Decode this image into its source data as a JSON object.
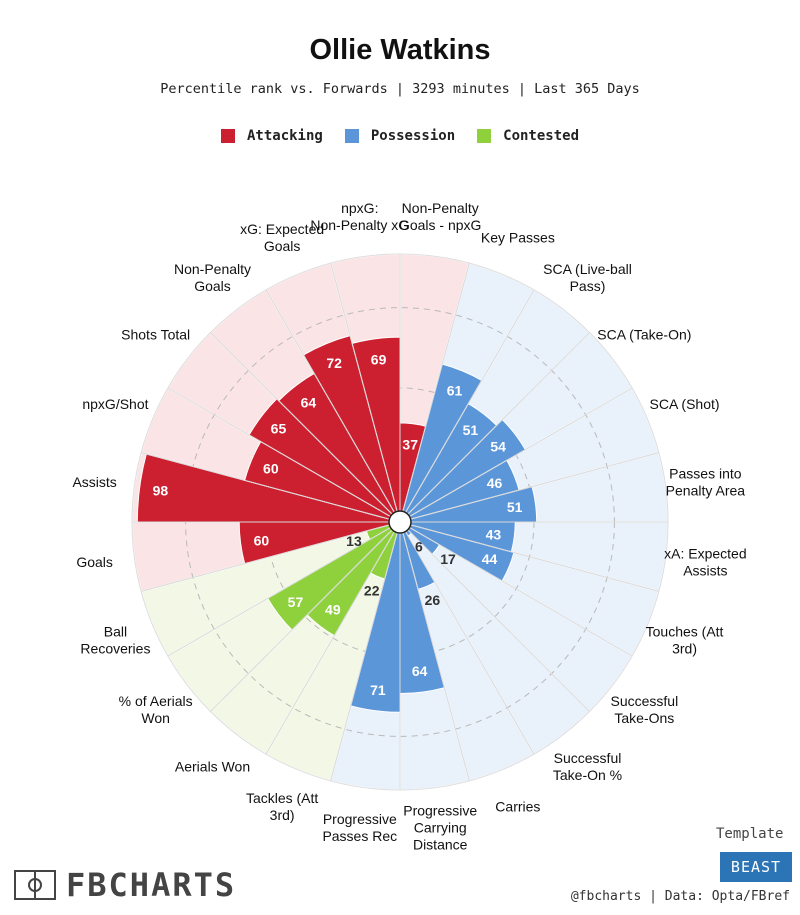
{
  "chart_data": {
    "type": "polar-bar",
    "title": "Ollie Watkins",
    "subtitle": "Percentile rank vs. Forwards | 3293 minutes | Last 365 Days",
    "rlim": [
      0,
      100
    ],
    "legend": [
      {
        "name": "Attacking",
        "color": "#cc1f2f"
      },
      {
        "name": "Possession",
        "color": "#5b96d9"
      },
      {
        "name": "Contested",
        "color": "#8fd13c"
      }
    ],
    "categories": [
      "Non-Penalty Goals - npxG",
      "Key Passes",
      "SCA (Live-ball Pass)",
      "SCA (Take-On)",
      "SCA (Shot)",
      "Passes into Penalty Area",
      "xA: Expected Assists",
      "Touches (Att 3rd)",
      "Successful Take-Ons",
      "Successful Take-On %",
      "Carries",
      "Progressive Carrying Distance",
      "Progressive Passes Rec",
      "Tackles (Att 3rd)",
      "Aerials Won",
      "% of Aerials Won",
      "Ball Recoveries",
      "Goals",
      "Assists",
      "npxG/Shot",
      "Shots Total",
      "Non-Penalty Goals",
      "xG: Expected Goals",
      "npxG: Non-Penalty xG"
    ],
    "groups": [
      "Attacking",
      "Possession",
      "Possession",
      "Possession",
      "Possession",
      "Possession",
      "Possession",
      "Possession",
      "Possession",
      "Possession",
      "Possession",
      "Possession",
      "Possession",
      "Contested",
      "Contested",
      "Contested",
      "Contested",
      "Attacking",
      "Attacking",
      "Attacking",
      "Attacking",
      "Attacking",
      "Attacking",
      "Attacking"
    ],
    "values": [
      37,
      61,
      51,
      54,
      46,
      51,
      43,
      44,
      17,
      6,
      26,
      64,
      71,
      22,
      49,
      57,
      13,
      60,
      98,
      60,
      65,
      64,
      72,
      69
    ]
  },
  "footer": {
    "logo_text": "FBCHARTS",
    "template_label": "Template",
    "template_name": "BEAST",
    "credit": "@fbcharts | Data: Opta/FBref"
  }
}
